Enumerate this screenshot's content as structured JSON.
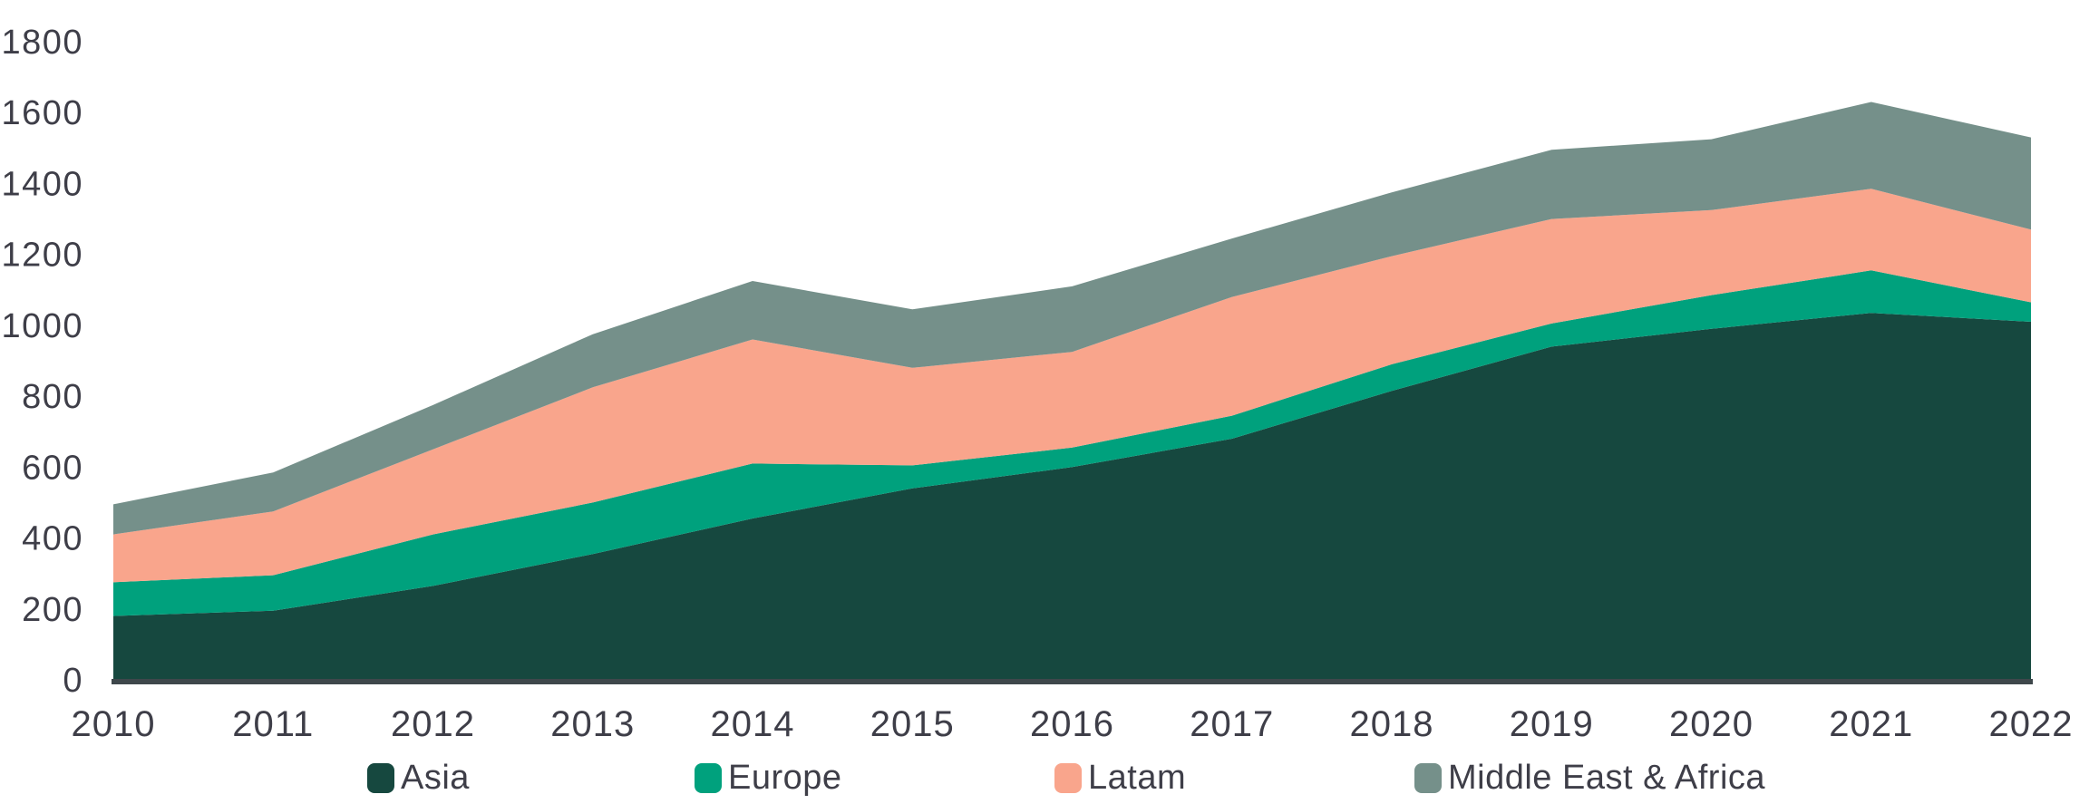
{
  "chart_data": {
    "type": "area",
    "stacked": true,
    "title": "",
    "xlabel": "",
    "ylabel": "",
    "x": [
      2010,
      2011,
      2012,
      2013,
      2014,
      2015,
      2016,
      2017,
      2018,
      2019,
      2020,
      2021,
      2022
    ],
    "series": [
      {
        "name": "Asia",
        "color": "#16483F",
        "values": [
          180,
          195,
          265,
          355,
          455,
          540,
          600,
          680,
          815,
          940,
          990,
          1035,
          1010
        ]
      },
      {
        "name": "Europe",
        "color": "#00A17D",
        "values": [
          95,
          100,
          145,
          145,
          155,
          65,
          55,
          65,
          75,
          65,
          95,
          120,
          55
        ]
      },
      {
        "name": "Latam",
        "color": "#F9A58C",
        "values": [
          135,
          180,
          240,
          325,
          350,
          275,
          270,
          335,
          305,
          295,
          240,
          230,
          205
        ]
      },
      {
        "name": "Middle East & Africa",
        "color": "#75908A",
        "values": [
          85,
          110,
          125,
          150,
          165,
          165,
          185,
          165,
          180,
          195,
          200,
          245,
          260
        ]
      }
    ],
    "stacked_totals": [
      495,
      585,
      775,
      975,
      1125,
      1045,
      1110,
      1245,
      1375,
      1495,
      1525,
      1630,
      1530
    ],
    "ylim": [
      0,
      1800
    ],
    "yticks": [
      0,
      200,
      400,
      600,
      800,
      1000,
      1200,
      1400,
      1600,
      1800
    ],
    "grid": false,
    "legend_position": "bottom",
    "axis_line_color": "#3E474B",
    "tick_text_color": "#3E3E48"
  }
}
